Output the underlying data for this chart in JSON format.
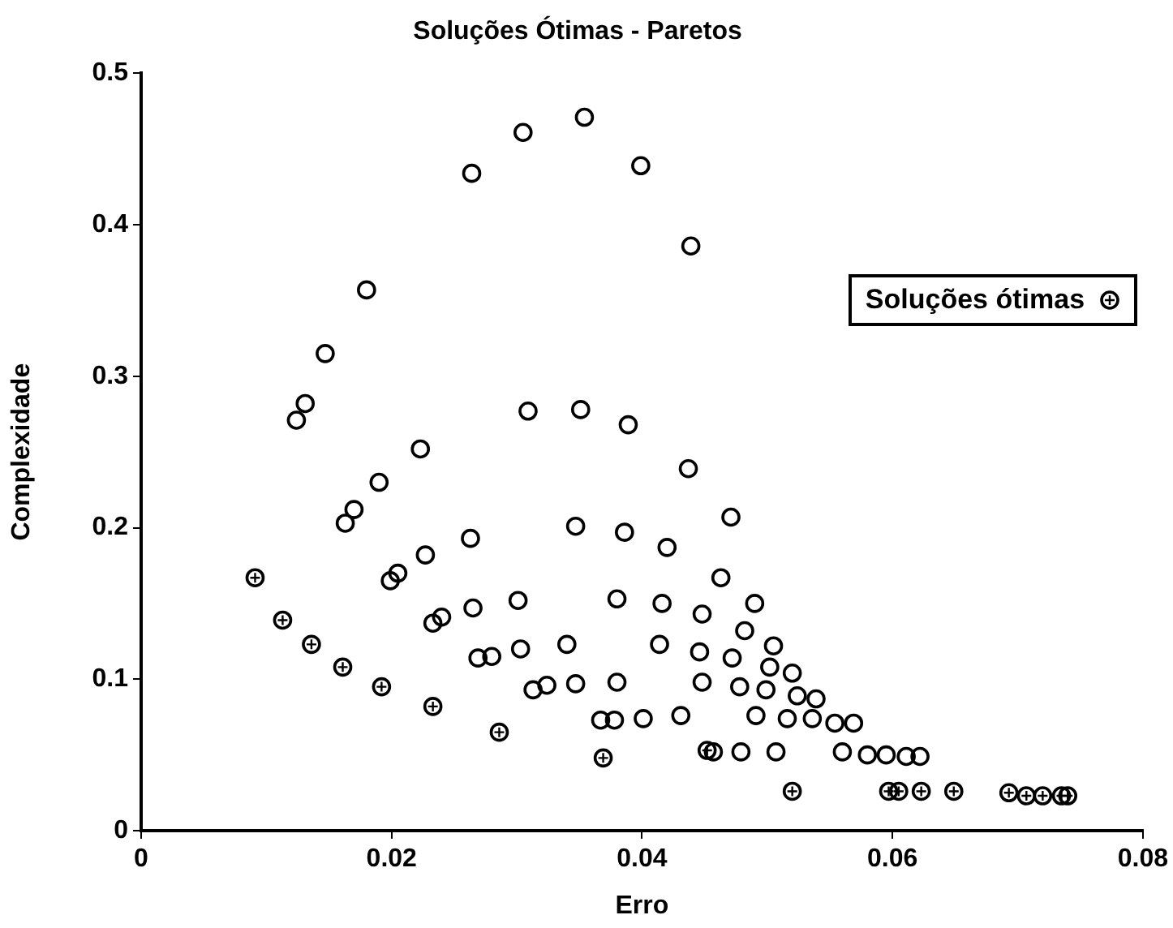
{
  "chart_data": {
    "type": "scatter",
    "title": "Soluções Ótimas - Paretos",
    "xlabel": "Erro",
    "ylabel": "Complexidade",
    "xlim": [
      0,
      0.08
    ],
    "xticks": [
      0,
      0.02,
      0.04,
      0.06,
      0.08
    ],
    "ylim": [
      0,
      0.5
    ],
    "yticks": [
      0,
      0.1,
      0.2,
      0.3,
      0.4,
      0.5
    ],
    "grid": false,
    "legend": "right",
    "marker": "circle",
    "series": [
      {
        "color": "#000000",
        "x": [
          0.0354,
          0.0305,
          0.0264,
          0.0399,
          0.0439,
          0.018,
          0.0147,
          0.0131,
          0.0124,
          0.0309,
          0.0351,
          0.0389,
          0.0223,
          0.0437,
          0.019,
          0.017,
          0.0163,
          0.0471,
          0.0347,
          0.0386,
          0.0263,
          0.042,
          0.0227,
          0.0205,
          0.0199,
          0.0463,
          0.0301,
          0.0265,
          0.024,
          0.0233,
          0.038,
          0.0416,
          0.0448,
          0.049,
          0.0482,
          0.0505,
          0.0303,
          0.028,
          0.0269,
          0.034,
          0.0414,
          0.0446,
          0.0472,
          0.0502,
          0.052,
          0.0524,
          0.0539,
          0.0313,
          0.0324,
          0.0347,
          0.038,
          0.0448,
          0.0478,
          0.0499,
          0.0367,
          0.0378,
          0.0401,
          0.0431,
          0.0491,
          0.0516,
          0.0536,
          0.0554,
          0.0569,
          0.0457,
          0.0479,
          0.0507,
          0.056,
          0.058,
          0.0595,
          0.0611,
          0.0622
        ],
        "values": [
          0.471,
          0.461,
          0.434,
          0.439,
          0.386,
          0.357,
          0.315,
          0.282,
          0.271,
          0.277,
          0.278,
          0.268,
          0.252,
          0.239,
          0.23,
          0.212,
          0.203,
          0.207,
          0.201,
          0.197,
          0.193,
          0.187,
          0.182,
          0.17,
          0.165,
          0.167,
          0.152,
          0.147,
          0.141,
          0.137,
          0.153,
          0.15,
          0.143,
          0.15,
          0.132,
          0.122,
          0.12,
          0.115,
          0.114,
          0.123,
          0.123,
          0.118,
          0.114,
          0.108,
          0.104,
          0.089,
          0.087,
          0.093,
          0.096,
          0.097,
          0.098,
          0.098,
          0.095,
          0.093,
          0.073,
          0.073,
          0.074,
          0.076,
          0.076,
          0.074,
          0.074,
          0.071,
          0.071,
          0.052,
          0.052,
          0.052,
          0.052,
          0.05,
          0.05,
          0.049,
          0.049
        ]
      },
      {
        "name": "Soluções ótimas",
        "color": "#000000",
        "marker": "cross",
        "x": [
          0.0091,
          0.0113,
          0.0136,
          0.0161,
          0.0192,
          0.0233,
          0.0286,
          0.0369,
          0.0452,
          0.052,
          0.0597,
          0.0605,
          0.0623,
          0.0649,
          0.0693,
          0.0707,
          0.072,
          0.0735,
          0.074
        ],
        "values": [
          0.167,
          0.139,
          0.123,
          0.108,
          0.095,
          0.082,
          0.065,
          0.048,
          0.053,
          0.026,
          0.026,
          0.026,
          0.026,
          0.026,
          0.025,
          0.023,
          0.023,
          0.023,
          0.023
        ]
      }
    ]
  }
}
